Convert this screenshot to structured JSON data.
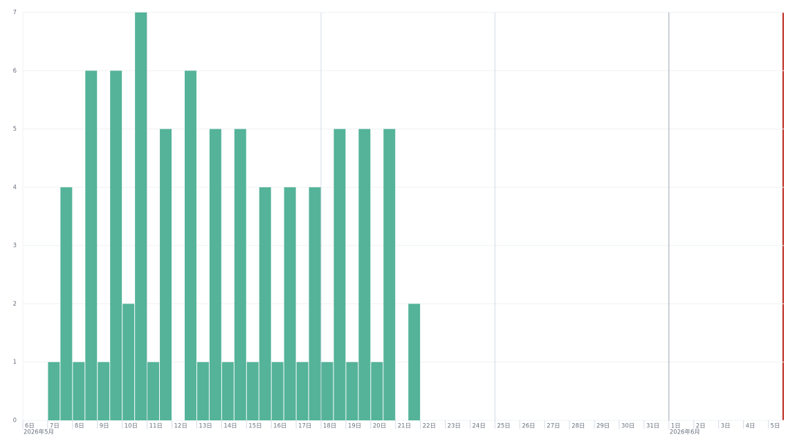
{
  "chart_data": {
    "type": "histogram",
    "bins": [
      "2026-05-07T00:00",
      "2026-05-07T12:00",
      "2026-05-08T00:00",
      "2026-05-08T12:00",
      "2026-05-09T00:00",
      "2026-05-09T12:00",
      "2026-05-10T00:00",
      "2026-05-10T12:00",
      "2026-05-11T00:00",
      "2026-05-11T12:00",
      "2026-05-12T00:00",
      "2026-05-12T12:00",
      "2026-05-13T00:00",
      "2026-05-13T12:00",
      "2026-05-14T00:00",
      "2026-05-14T12:00",
      "2026-05-15T00:00",
      "2026-05-15T12:00",
      "2026-05-16T00:00",
      "2026-05-16T12:00",
      "2026-05-17T00:00",
      "2026-05-17T12:00",
      "2026-05-18T00:00",
      "2026-05-18T12:00",
      "2026-05-19T00:00",
      "2026-05-19T12:00",
      "2026-05-20T00:00",
      "2026-05-20T12:00",
      "2026-05-21T00:00",
      "2026-05-21T12:00",
      "2026-05-22T00:00"
    ],
    "counts": [
      1,
      4,
      1,
      6,
      1,
      6,
      2,
      7,
      1,
      5,
      0,
      6,
      1,
      5,
      1,
      5,
      1,
      4,
      1,
      4,
      1,
      4,
      1,
      5,
      1,
      5,
      1,
      5,
      0,
      2
    ],
    "color": "#54b399",
    "xlim": [
      "2026-05-06T00:00",
      "2026-06-05T15:00"
    ],
    "xticks": [
      {
        "value": "2026-05-06T00:00",
        "label": "6日"
      },
      {
        "value": "2026-05-07T00:00",
        "label": "7日"
      },
      {
        "value": "2026-05-08T00:00",
        "label": "8日"
      },
      {
        "value": "2026-05-09T00:00",
        "label": "9日"
      },
      {
        "value": "2026-05-10T00:00",
        "label": "10日"
      },
      {
        "value": "2026-05-11T00:00",
        "label": "11日"
      },
      {
        "value": "2026-05-12T00:00",
        "label": "12日"
      },
      {
        "value": "2026-05-13T00:00",
        "label": "13日"
      },
      {
        "value": "2026-05-14T00:00",
        "label": "14日"
      },
      {
        "value": "2026-05-15T00:00",
        "label": "15日"
      },
      {
        "value": "2026-05-16T00:00",
        "label": "16日"
      },
      {
        "value": "2026-05-17T00:00",
        "label": "17日"
      },
      {
        "value": "2026-05-18T00:00",
        "label": "18日"
      },
      {
        "value": "2026-05-19T00:00",
        "label": "19日"
      },
      {
        "value": "2026-05-20T00:00",
        "label": "20日"
      },
      {
        "value": "2026-05-21T00:00",
        "label": "21日"
      },
      {
        "value": "2026-05-22T00:00",
        "label": "22日"
      },
      {
        "value": "2026-05-23T00:00",
        "label": "23日"
      },
      {
        "value": "2026-05-24T00:00",
        "label": "24日"
      },
      {
        "value": "2026-05-25T00:00",
        "label": "25日"
      },
      {
        "value": "2026-05-26T00:00",
        "label": "26日"
      },
      {
        "value": "2026-05-27T00:00",
        "label": "27日"
      },
      {
        "value": "2026-05-28T00:00",
        "label": "28日"
      },
      {
        "value": "2026-05-29T00:00",
        "label": "29日"
      },
      {
        "value": "2026-05-30T00:00",
        "label": "30日"
      },
      {
        "value": "2026-05-31T00:00",
        "label": "31日"
      },
      {
        "value": "2026-06-01T00:00",
        "label": "1日"
      },
      {
        "value": "2026-06-02T00:00",
        "label": "2日"
      },
      {
        "value": "2026-06-03T00:00",
        "label": "3日"
      },
      {
        "value": "2026-06-04T00:00",
        "label": "4日"
      },
      {
        "value": "2026-06-05T00:00",
        "label": "5日"
      }
    ],
    "x_month_labels": [
      {
        "value": "2026-05-06T00:00",
        "label": "2026年5月"
      },
      {
        "value": "2026-06-01T00:00",
        "label": "2026年6月"
      }
    ],
    "ylim": [
      0,
      7
    ],
    "yticks": [
      0,
      1,
      2,
      3,
      4,
      5,
      6,
      7
    ],
    "grid": true
  }
}
